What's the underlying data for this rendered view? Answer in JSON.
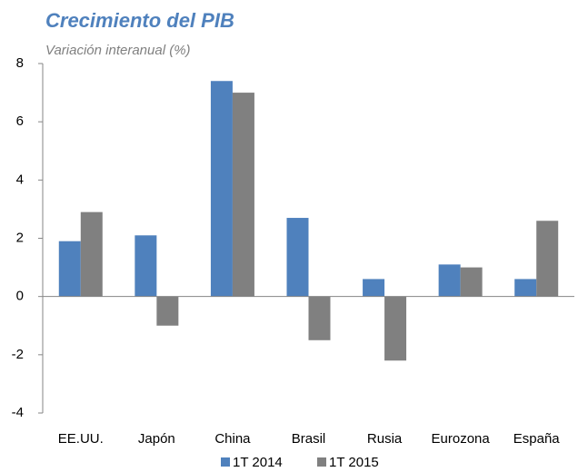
{
  "chart_data": {
    "type": "bar",
    "title": "Crecimiento del PIB",
    "subtitle": "Variación interanual (%)",
    "categories": [
      "EE.UU.",
      "Japón",
      "China",
      "Brasil",
      "Rusia",
      "Eurozona",
      "España"
    ],
    "series": [
      {
        "name": "1T 2014",
        "color": "#4f81bd",
        "values": [
          1.9,
          2.1,
          7.4,
          2.7,
          0.6,
          1.1,
          0.6
        ]
      },
      {
        "name": "1T 2015",
        "color": "#808080",
        "values": [
          2.9,
          -1.0,
          7.0,
          -1.5,
          -2.2,
          1.0,
          2.6
        ]
      }
    ],
    "ylim": [
      -4,
      8
    ],
    "yticks": [
      -4,
      -2,
      0,
      2,
      4,
      6,
      8
    ],
    "grid": false,
    "legend": "bottom"
  }
}
